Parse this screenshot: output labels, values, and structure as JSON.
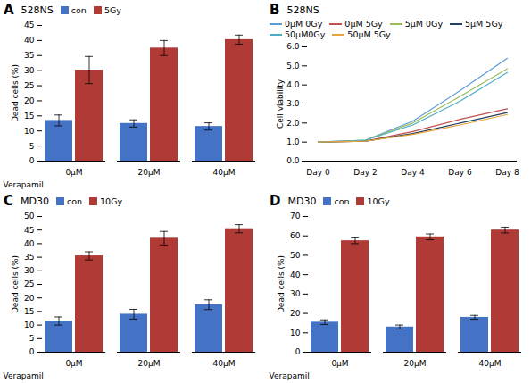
{
  "chart_data": [
    {
      "type": "bar",
      "title": "528NS",
      "annotations": [
        "A"
      ],
      "xlabel": "Verapamil",
      "ylabel": "Dead cells (%)",
      "categories": [
        "0μM",
        "20μM",
        "40μM"
      ],
      "series": [
        {
          "name": "con",
          "color": "#4472C4",
          "values": [
            13.5,
            12.5,
            11.5
          ],
          "errors": [
            1.8,
            1.2,
            1.2
          ]
        },
        {
          "name": "5Gy",
          "color": "#B03A35",
          "values": [
            30.2,
            37.5,
            40.3
          ],
          "errors": [
            4.5,
            2.5,
            1.5
          ]
        }
      ],
      "ylim": [
        0,
        45
      ],
      "yticks": [
        0,
        5,
        10,
        15,
        20,
        25,
        30,
        35,
        40,
        45
      ],
      "legend": "upper left",
      "grid": false
    },
    {
      "type": "line",
      "title": "528NS",
      "annotations": [
        "B"
      ],
      "ylabel": "Cell viability",
      "categories": [
        "Day 0",
        "Day 2",
        "Day 4",
        "Day 6",
        "Day 8"
      ],
      "series": [
        {
          "name": "0μM 0Gy",
          "color": "#5B9BD5",
          "values": [
            1.0,
            1.1,
            2.1,
            3.7,
            5.4
          ]
        },
        {
          "name": "0μM 5Gy",
          "color": "#C0504D",
          "values": [
            1.0,
            1.05,
            1.55,
            2.2,
            2.75
          ]
        },
        {
          "name": "5μM 0Gy",
          "color": "#9BBB59",
          "values": [
            1.0,
            1.1,
            2.0,
            3.4,
            4.85
          ]
        },
        {
          "name": "5μM 5Gy",
          "color": "#243F60",
          "values": [
            1.0,
            1.05,
            1.45,
            2.0,
            2.55
          ]
        },
        {
          "name": "50μM0Gy",
          "color": "#4BACC6",
          "values": [
            1.0,
            1.1,
            1.9,
            3.15,
            4.65
          ]
        },
        {
          "name": "50μM 5Gy",
          "color": "#E6A63A",
          "values": [
            1.0,
            1.05,
            1.4,
            1.9,
            2.45
          ]
        }
      ],
      "ylim": [
        0,
        6
      ],
      "yticks": [
        0,
        1,
        2,
        3,
        4,
        5,
        6
      ],
      "legend": "upper left",
      "grid": false
    },
    {
      "type": "bar",
      "title": "MD30",
      "annotations": [
        "C"
      ],
      "xlabel": "Verapamil",
      "ylabel": "Dead cells (%)",
      "categories": [
        "0μM",
        "20μM",
        "40μM"
      ],
      "series": [
        {
          "name": "con",
          "color": "#4472C4",
          "values": [
            11.5,
            14.0,
            17.5
          ],
          "errors": [
            1.5,
            1.8,
            1.8
          ]
        },
        {
          "name": "10Gy",
          "color": "#B03A35",
          "values": [
            35.5,
            42.0,
            45.5
          ],
          "errors": [
            1.5,
            2.5,
            1.5
          ]
        }
      ],
      "ylim": [
        0,
        50
      ],
      "yticks": [
        0,
        5,
        10,
        15,
        20,
        25,
        30,
        35,
        40,
        45,
        50
      ],
      "legend": "upper left",
      "grid": false
    },
    {
      "type": "bar",
      "title": "MD30",
      "annotations": [
        "D"
      ],
      "xlabel": "Verapamil",
      "ylabel": "Dead cells (%)",
      "categories": [
        "0μM",
        "20μM",
        "40μM"
      ],
      "series": [
        {
          "name": "con",
          "color": "#4472C4",
          "values": [
            15.5,
            13.0,
            18.0
          ],
          "errors": [
            1.2,
            1.0,
            1.0
          ]
        },
        {
          "name": "10Gy",
          "color": "#B03A35",
          "values": [
            57.5,
            59.5,
            63.0
          ],
          "errors": [
            1.5,
            1.5,
            1.5
          ]
        }
      ],
      "ylim": [
        0,
        70
      ],
      "yticks": [
        0,
        10,
        20,
        30,
        40,
        50,
        60,
        70
      ],
      "legend": "upper left",
      "grid": false
    }
  ]
}
